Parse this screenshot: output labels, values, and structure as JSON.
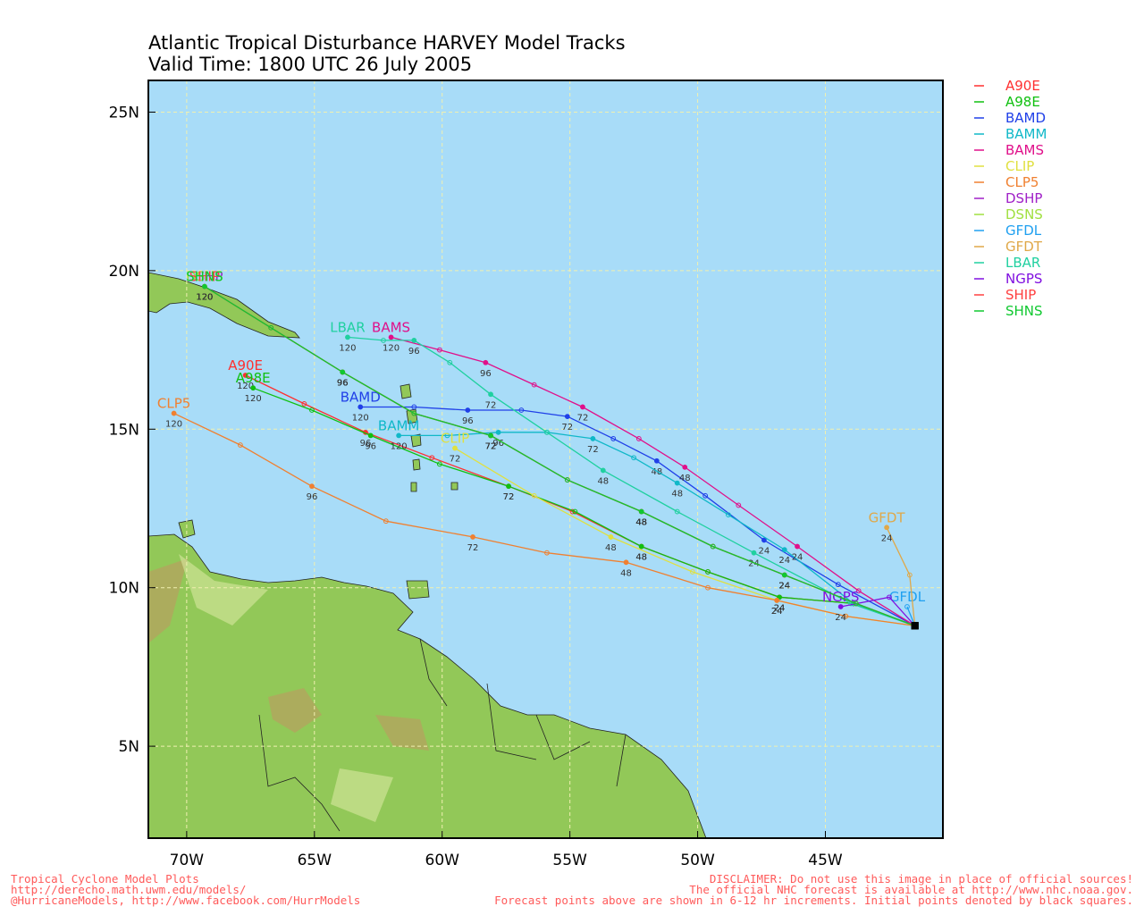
{
  "title": [
    "Atlantic Tropical Disturbance HARVEY Model Tracks",
    "Valid Time: 1800 UTC 26 July 2005"
  ],
  "map": {
    "xlim": [
      -71.5,
      -40.4
    ],
    "ylim": [
      2.1,
      26.0
    ],
    "grid": true,
    "xticks": [
      {
        "value": -70,
        "label": "70W"
      },
      {
        "value": -65,
        "label": "65W"
      },
      {
        "value": -60,
        "label": "60W"
      },
      {
        "value": -55,
        "label": "55W"
      },
      {
        "value": -50,
        "label": "50W"
      },
      {
        "value": -45,
        "label": "45W"
      }
    ],
    "yticks": [
      {
        "value": 5,
        "label": "5N"
      },
      {
        "value": 10,
        "label": "10N"
      },
      {
        "value": 15,
        "label": "15N"
      },
      {
        "value": 20,
        "label": "20N"
      },
      {
        "value": 25,
        "label": "25N"
      }
    ]
  },
  "label_hours": [
    24,
    48,
    72,
    96,
    120
  ],
  "tracks": [
    {
      "name": "A90E",
      "color": "#ff3030",
      "lon": [
        -41.5,
        -43.9,
        -46.8,
        -49.6,
        -52.2,
        -54.9,
        -57.4,
        -60.4,
        -63.0,
        -65.4,
        -67.7
      ],
      "lat": [
        8.8,
        9.5,
        9.7,
        10.5,
        11.3,
        12.4,
        13.2,
        14.1,
        14.9,
        15.8,
        16.7
      ]
    },
    {
      "name": "A98E",
      "color": "#10c010",
      "lon": [
        -41.5,
        -43.9,
        -46.8,
        -49.6,
        -52.2,
        -54.8,
        -57.4,
        -60.1,
        -62.8,
        -65.1,
        -67.4
      ],
      "lat": [
        8.8,
        9.5,
        9.7,
        10.5,
        11.3,
        12.4,
        13.2,
        13.9,
        14.8,
        15.6,
        16.3
      ]
    },
    {
      "name": "BAMD",
      "color": "#2040e8",
      "lon": [
        -41.5,
        -44.5,
        -47.4,
        -49.7,
        -51.6,
        -53.3,
        -55.1,
        -56.9,
        -59.0,
        -61.1,
        -63.2
      ],
      "lat": [
        8.8,
        10.1,
        11.5,
        12.9,
        14.0,
        14.7,
        15.4,
        15.6,
        15.6,
        15.7,
        15.7
      ]
    },
    {
      "name": "BAMM",
      "color": "#10b8c8",
      "lon": [
        -41.5,
        -43.9,
        -46.6,
        -48.8,
        -50.8,
        -52.5,
        -54.1,
        -55.9,
        -57.8,
        -59.8,
        -61.7
      ],
      "lat": [
        8.8,
        9.5,
        11.2,
        12.3,
        13.3,
        14.1,
        14.7,
        14.9,
        14.9,
        14.8,
        14.8
      ]
    },
    {
      "name": "BAMS",
      "color": "#e0108a",
      "lon": [
        -41.5,
        -43.7,
        -46.1,
        -48.4,
        -50.5,
        -52.3,
        -54.5,
        -56.4,
        -58.3,
        -60.1,
        -62.0
      ],
      "lat": [
        8.8,
        9.9,
        11.3,
        12.6,
        13.8,
        14.7,
        15.7,
        16.4,
        17.1,
        17.5,
        17.9
      ]
    },
    {
      "name": "CLIP",
      "color": "#e0e040",
      "lon": [
        -41.5,
        -44.2,
        -46.9,
        -50.2,
        -53.4,
        -56.4,
        -59.5
      ],
      "lat": [
        8.8,
        9.1,
        9.6,
        10.5,
        11.6,
        12.9,
        14.4
      ]
    },
    {
      "name": "CLP5",
      "color": "#f08030",
      "lon": [
        -41.5,
        -44.2,
        -46.9,
        -49.6,
        -52.8,
        -55.9,
        -58.8,
        -62.2,
        -65.1,
        -67.9,
        -70.5
      ],
      "lat": [
        8.8,
        9.1,
        9.6,
        10.0,
        10.8,
        11.1,
        11.6,
        12.1,
        13.2,
        14.5,
        15.5
      ]
    },
    {
      "name": "DSHP",
      "color": "#a020c8",
      "lon": [
        -41.5,
        -43.8,
        -46.6,
        -49.4,
        -52.2,
        -55.1,
        -58.1,
        -61.1,
        -63.9,
        -66.7,
        -69.3
      ],
      "lat": [
        8.8,
        9.5,
        10.4,
        11.3,
        12.4,
        13.4,
        14.8,
        15.5,
        16.8,
        18.2,
        19.5
      ]
    },
    {
      "name": "DSNS",
      "color": "#a0e040",
      "lon": [
        -41.5,
        -43.8,
        -46.6,
        -49.4,
        -52.2,
        -55.1,
        -58.1,
        -61.1,
        -63.9,
        -66.7,
        -69.3
      ],
      "lat": [
        8.8,
        9.5,
        10.4,
        11.3,
        12.4,
        13.4,
        14.8,
        15.5,
        16.8,
        18.2,
        19.5
      ]
    },
    {
      "name": "GFDL",
      "color": "#20a0f0",
      "lon": [
        -41.5,
        -41.8
      ],
      "lat": [
        8.8,
        9.4
      ]
    },
    {
      "name": "GFDT",
      "color": "#e0a848",
      "lon": [
        -41.5,
        -41.7,
        -42.6
      ],
      "lat": [
        8.8,
        10.4,
        11.9
      ]
    },
    {
      "name": "LBAR",
      "color": "#20d0a0",
      "lon": [
        -41.5,
        -44.0,
        -47.8,
        -50.8,
        -53.7,
        -55.9,
        -58.1,
        -59.7,
        -61.1,
        -62.3,
        -63.7
      ],
      "lat": [
        8.8,
        9.5,
        11.1,
        12.4,
        13.7,
        14.9,
        16.1,
        17.1,
        17.8,
        17.8,
        17.9
      ]
    },
    {
      "name": "NGPS",
      "color": "#8010e0",
      "lon": [
        -41.5,
        -42.5,
        -44.4
      ],
      "lat": [
        8.8,
        9.7,
        9.4
      ]
    },
    {
      "name": "SHIP",
      "color": "#ff4040",
      "lon": [
        -41.5,
        -43.8,
        -46.6,
        -49.4,
        -52.2,
        -55.1,
        -58.1,
        -61.1,
        -63.9,
        -66.7,
        -69.3
      ],
      "lat": [
        8.8,
        9.5,
        10.4,
        11.3,
        12.4,
        13.4,
        14.8,
        15.5,
        16.8,
        18.2,
        19.5
      ]
    },
    {
      "name": "SHNS",
      "color": "#10c830",
      "lon": [
        -41.5,
        -43.8,
        -46.6,
        -49.4,
        -52.2,
        -55.1,
        -58.1,
        -61.1,
        -63.9,
        -66.7,
        -69.3
      ],
      "lat": [
        8.8,
        9.5,
        10.4,
        11.3,
        12.4,
        13.4,
        14.8,
        15.5,
        16.8,
        18.2,
        19.5
      ]
    }
  ],
  "footer_left": [
    "Tropical Cyclone Model Plots",
    "http://derecho.math.uwm.edu/models/",
    "@HurricaneModels, http://www.facebook.com/HurrModels"
  ],
  "footer_right": [
    "DISCLAIMER: Do not use this image in place of official sources!",
    "The official NHC forecast is available at http://www.nhc.noaa.gov.",
    "Forecast points above are shown in 6-12 hr increments. Initial points denoted by black squares."
  ]
}
